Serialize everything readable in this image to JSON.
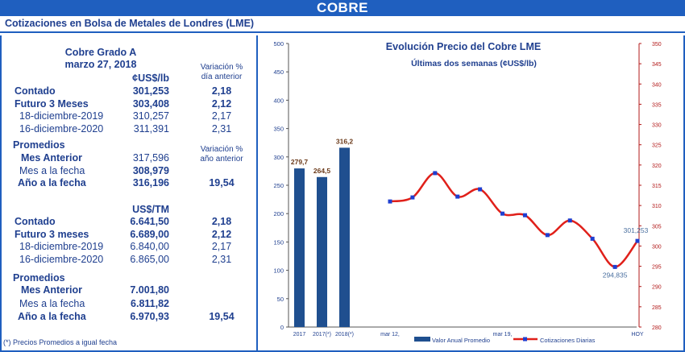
{
  "banner": "COBRE",
  "subtitle": "Cotizaciones en Bolsa de Metales de Londres (LME)",
  "table": {
    "head1": "Cobre Grado A",
    "date": "marzo 27, 2018",
    "unit_lb": "¢US$/lb",
    "var_dia_1": "Variación %",
    "var_dia_2": "día anterior",
    "var_anio_1": "Variación %",
    "var_anio_2": "año anterior",
    "unit_tm": "US$/TM",
    "promedios": "Promedios",
    "rows_lb": [
      {
        "label": "Contado",
        "value": "301,253",
        "var": "2,18",
        "bold": true
      },
      {
        "label": "Futuro 3 Meses",
        "value": "303,408",
        "var": "2,12",
        "bold": true
      },
      {
        "label": "18-diciembre-2019",
        "value": "310,257",
        "var": "2,17",
        "bold": false
      },
      {
        "label": "16-diciembre-2020",
        "value": "311,391",
        "var": "2,31",
        "bold": false
      }
    ],
    "prom_lb": [
      {
        "label": "Mes Anterior",
        "value": "317,596",
        "var": "",
        "labelBold": true,
        "valueBold": false
      },
      {
        "label": "Mes a la fecha",
        "value": "308,979",
        "var": "",
        "labelBold": false,
        "valueBold": true
      },
      {
        "label": "Año a la fecha",
        "value": "316,196",
        "var": "19,54",
        "labelBold": true,
        "valueBold": true
      }
    ],
    "rows_tm": [
      {
        "label": "Contado",
        "value": "6.641,50",
        "var": "2,18",
        "bold": true
      },
      {
        "label": "Futuro 3 meses",
        "value": "6.689,00",
        "var": "2,12",
        "bold": true
      },
      {
        "label": "18-diciembre-2019",
        "value": "6.840,00",
        "var": "2,17",
        "bold": false
      },
      {
        "label": "16-diciembre-2020",
        "value": "6.865,00",
        "var": "2,31",
        "bold": false
      }
    ],
    "prom_tm": [
      {
        "label": "Mes Anterior",
        "value": "7.001,80",
        "var": "",
        "labelBold": true,
        "valueBold": true
      },
      {
        "label": "Mes a la fecha",
        "value": "6.811,82",
        "var": "",
        "labelBold": false,
        "valueBold": true
      },
      {
        "label": "Año a la fecha",
        "value": "6.970,93",
        "var": "19,54",
        "labelBold": true,
        "valueBold": true
      }
    ],
    "note": "(*) Precios Promedios a igual  fecha"
  },
  "chart_data": {
    "type": "bar+line",
    "title": "Evolución Precio del Cobre LME",
    "subtitle": "Últimas dos semanas (¢US$/lb)",
    "bar_color": "#1f4f8f",
    "line_color": "#e0201a",
    "marker_color": "#1f3fd0",
    "bars": {
      "name": "Valor Anual Promedio",
      "categories": [
        "2017",
        "2017(*)",
        "2018(*)"
      ],
      "values": [
        279.7,
        264.5,
        316.2
      ],
      "labels": [
        "279,7",
        "264,5",
        "316,2"
      ],
      "ylim": [
        0,
        500
      ],
      "yticks": [
        0,
        50,
        100,
        150,
        200,
        250,
        300,
        350,
        400,
        450,
        500
      ]
    },
    "line": {
      "name": "Cotizaciones Diarias",
      "values": [
        311.0,
        312.0,
        318.0,
        312.2,
        314.0,
        308.0,
        307.6,
        302.7,
        306.3,
        301.8,
        294.835,
        301.253
      ],
      "x_tick_labels": [
        {
          "index": 0,
          "label": "mar 12,"
        },
        {
          "index": 5,
          "label": "mar 19,"
        },
        {
          "index": 11,
          "label": "HOY"
        }
      ],
      "annotations": [
        {
          "index": 10,
          "label": "294,835"
        },
        {
          "index": 11,
          "label": "301,253"
        }
      ],
      "ylim": [
        280,
        350
      ],
      "yticks": [
        280,
        285,
        290,
        295,
        300,
        305,
        310,
        315,
        320,
        325,
        330,
        335,
        340,
        345,
        350
      ]
    }
  }
}
